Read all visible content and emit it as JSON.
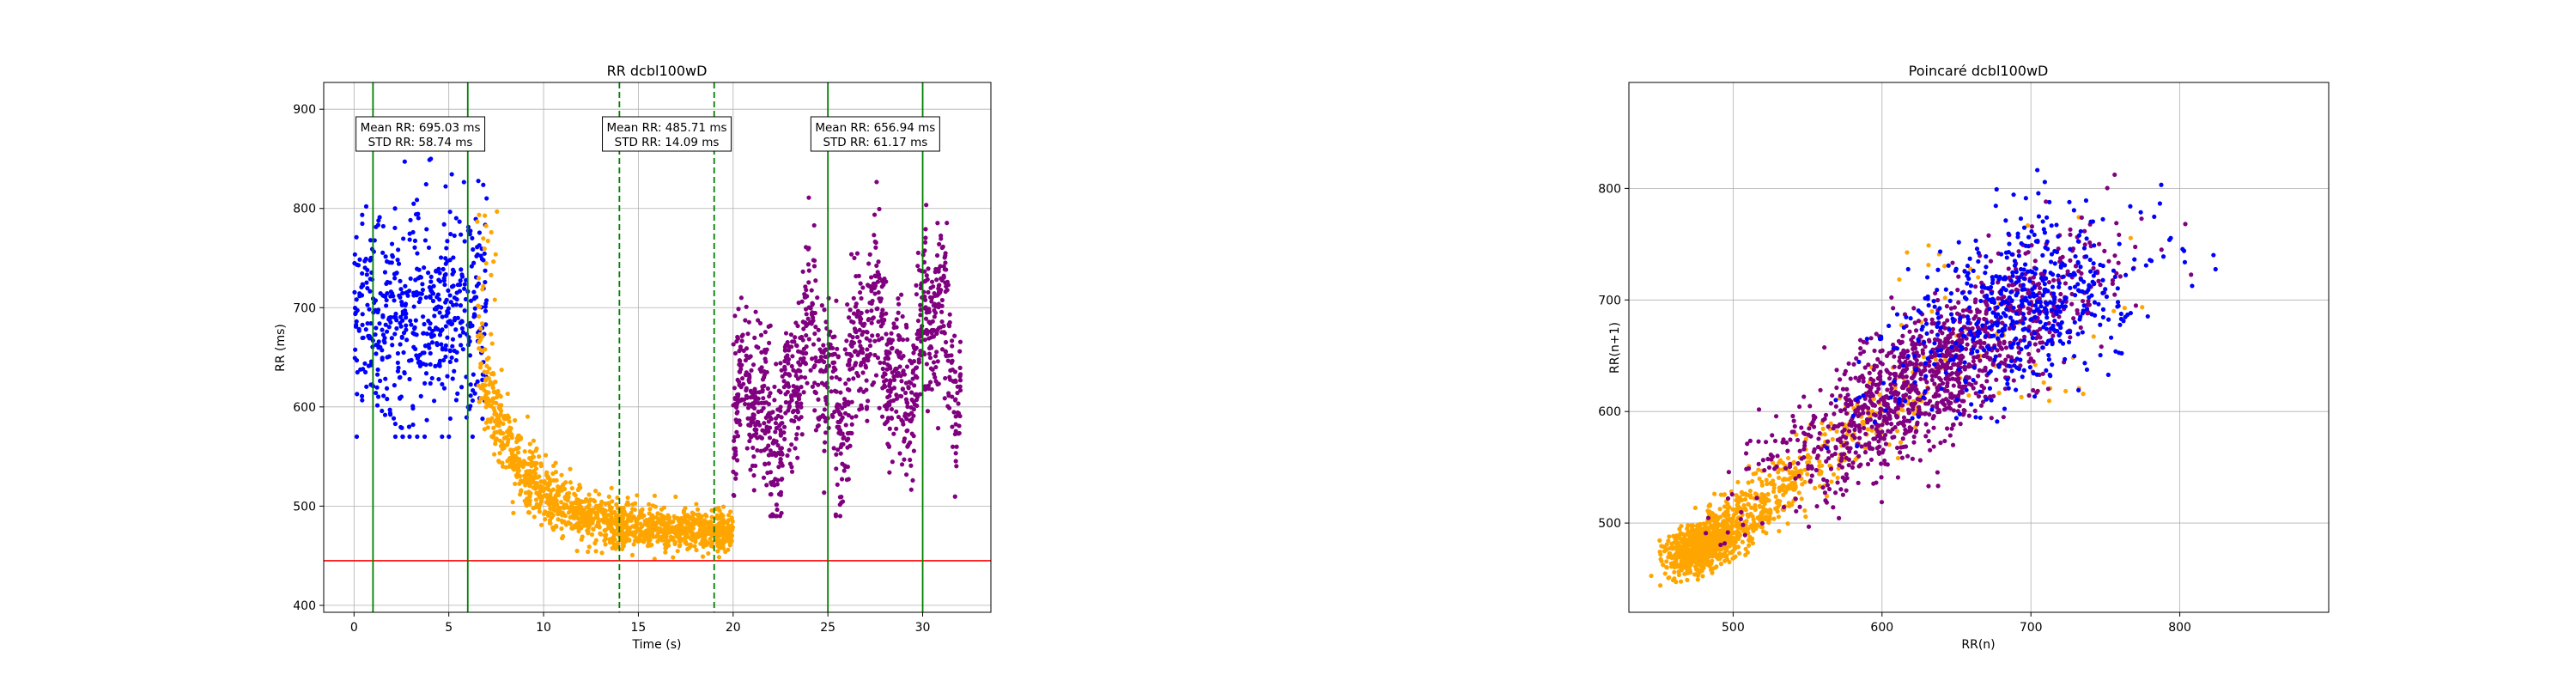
{
  "chart_data": [
    {
      "type": "scatter",
      "title": "RR dcbl100wD",
      "xlabel": "Time (s)",
      "ylabel": "RR (ms)",
      "xlim": [
        -1.6,
        33.6
      ],
      "ylim": [
        393,
        927
      ],
      "xticks": [
        0,
        5,
        10,
        15,
        20,
        25,
        30
      ],
      "yticks": [
        400,
        500,
        600,
        700,
        800,
        900
      ],
      "grid": true,
      "colors": {
        "baseline": "#0000ff",
        "transition": "#ffa500",
        "recovery": "#800080"
      },
      "series_shape": {
        "baseline": {
          "x_range": [
            0,
            7
          ],
          "mean": 695.03,
          "std": 58.74
        },
        "transition": {
          "x_range": [
            7,
            20
          ],
          "mean": 485.71,
          "std": 14.09
        },
        "recovery": {
          "x_range": [
            20,
            32
          ],
          "mean": 656.94,
          "std": 61.17
        }
      },
      "reference_lines": {
        "horizontal": {
          "y": 445,
          "color": "#ff0000"
        },
        "vertical_solid": {
          "x": [
            1,
            6,
            25,
            30
          ],
          "color": "#008000"
        },
        "vertical_dashed": {
          "x": [
            14,
            19
          ],
          "color": "#008000"
        }
      },
      "annotations": [
        {
          "x": 3.5,
          "line1": "Mean RR: 695.03 ms",
          "line2": "STD RR: 58.74 ms"
        },
        {
          "x": 16.5,
          "line1": "Mean RR: 485.71 ms",
          "line2": "STD RR: 14.09 ms"
        },
        {
          "x": 27.5,
          "line1": "Mean RR: 656.94 ms",
          "line2": "STD RR: 61.17 ms"
        }
      ]
    },
    {
      "type": "scatter",
      "title": "Poincaré dcbl100wD",
      "xlabel": "RR(n)",
      "ylabel": "RR(n+1)",
      "xlim": [
        430,
        900
      ],
      "ylim": [
        420,
        895
      ],
      "xticks": [
        500,
        600,
        700,
        800
      ],
      "yticks": [
        500,
        600,
        700,
        800
      ],
      "grid": true,
      "colors": {
        "baseline": "#0000ff",
        "transition": "#ffa500",
        "recovery": "#800080"
      }
    }
  ]
}
